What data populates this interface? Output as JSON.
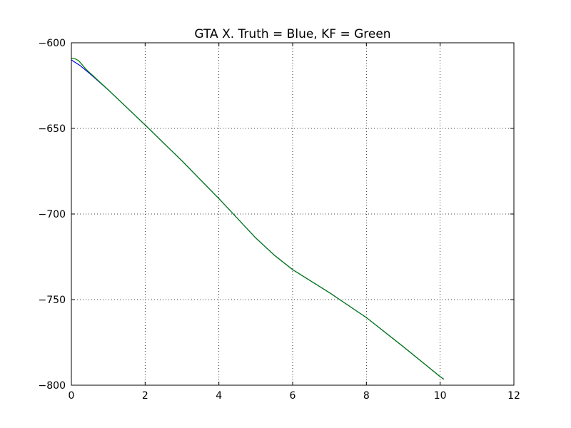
{
  "chart_data": {
    "type": "line",
    "title": "GTA X. Truth = Blue, KF = Green",
    "xlabel": "",
    "ylabel": "",
    "xlim": [
      0,
      12
    ],
    "ylim": [
      -800,
      -600
    ],
    "xticks": [
      0,
      2,
      4,
      6,
      8,
      10,
      12
    ],
    "yticks": [
      -800,
      -750,
      -700,
      -650,
      -600
    ],
    "xtick_labels": [
      "0",
      "2",
      "4",
      "6",
      "8",
      "10",
      "12"
    ],
    "ytick_labels": [
      "−800",
      "−750",
      "−700",
      "−650",
      "−600"
    ],
    "grid": true,
    "legend": "none",
    "series": [
      {
        "color": "#0000ff",
        "x": [
          0,
          0.25,
          0.5,
          1,
          2,
          3,
          4,
          5,
          5.5,
          6,
          7,
          8,
          9,
          10,
          10.1
        ],
        "y": [
          -610,
          -613.5,
          -618,
          -627.5,
          -648,
          -669,
          -691,
          -714,
          -724,
          -732.5,
          -746,
          -760.5,
          -777.5,
          -795,
          -796.5
        ]
      },
      {
        "color": "#008000",
        "x": [
          0,
          0.1,
          0.2,
          0.3,
          0.4,
          0.5,
          1,
          2,
          3,
          4,
          5,
          5.5,
          6,
          7,
          8,
          9,
          10,
          10.1
        ],
        "y": [
          -609,
          -609.3,
          -610.5,
          -613,
          -615.5,
          -617.5,
          -627.5,
          -648,
          -669,
          -691,
          -714,
          -724,
          -732.5,
          -746,
          -760.5,
          -777.5,
          -795,
          -796.5
        ]
      }
    ]
  }
}
